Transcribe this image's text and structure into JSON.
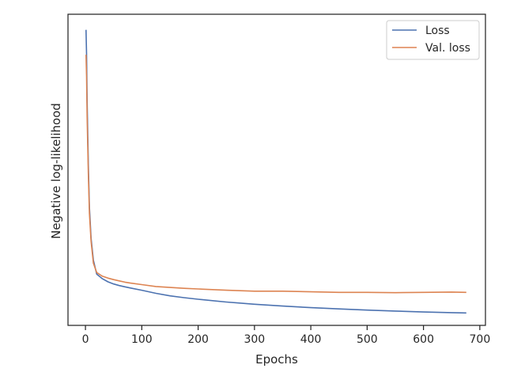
{
  "chart_data": {
    "type": "line",
    "title": "",
    "xlabel": "Epochs",
    "ylabel": "Negative log-likelihood",
    "xlim": [
      -31,
      710
    ],
    "ylim": [
      0.0,
      1.0
    ],
    "xticks": [
      0,
      100,
      200,
      300,
      400,
      500,
      600,
      700
    ],
    "yticks": [],
    "grid": false,
    "legend": "top-right",
    "series": [
      {
        "name": "Loss",
        "color": "#4c72b0",
        "x": [
          1,
          2,
          3,
          5,
          7,
          10,
          14,
          20,
          30,
          40,
          50,
          60,
          70,
          80,
          100,
          125,
          150,
          175,
          200,
          250,
          300,
          350,
          400,
          450,
          500,
          550,
          600,
          650,
          676
        ],
        "y": [
          0.95,
          0.87,
          0.72,
          0.52,
          0.38,
          0.28,
          0.21,
          0.165,
          0.15,
          0.14,
          0.133,
          0.128,
          0.124,
          0.12,
          0.113,
          0.103,
          0.095,
          0.089,
          0.084,
          0.075,
          0.068,
          0.062,
          0.057,
          0.053,
          0.049,
          0.046,
          0.043,
          0.041,
          0.04
        ]
      },
      {
        "name": "Val. loss",
        "color": "#dd8452",
        "x": [
          1,
          2,
          3,
          5,
          7,
          10,
          14,
          20,
          30,
          40,
          50,
          60,
          70,
          80,
          100,
          125,
          150,
          175,
          200,
          250,
          300,
          350,
          400,
          450,
          500,
          550,
          600,
          650,
          676
        ],
        "y": [
          0.87,
          0.8,
          0.67,
          0.49,
          0.36,
          0.27,
          0.2,
          0.17,
          0.158,
          0.152,
          0.147,
          0.143,
          0.139,
          0.136,
          0.131,
          0.125,
          0.122,
          0.119,
          0.117,
          0.113,
          0.11,
          0.11,
          0.108,
          0.106,
          0.106,
          0.105,
          0.106,
          0.107,
          0.106
        ]
      }
    ]
  }
}
